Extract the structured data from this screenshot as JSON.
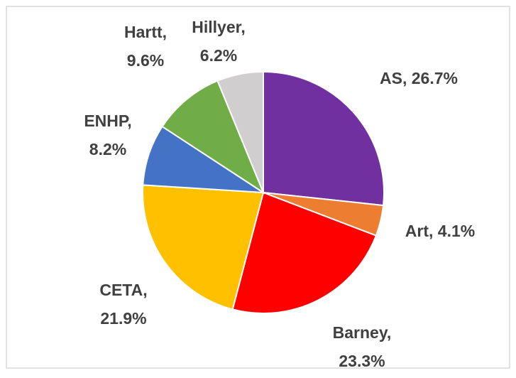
{
  "chart_data": {
    "type": "pie",
    "labels": [
      "AS, 26.7%",
      "Art, 4.1%",
      "Barney, 23.3%",
      "CETA, 21.9%",
      "ENHP, 8.2%",
      "Hartt, 9.6%",
      "Hillyer, 6.2%"
    ],
    "values": [
      26.7,
      4.1,
      23.3,
      21.9,
      8.2,
      9.6,
      6.2
    ],
    "colors": [
      "#7030a0",
      "#ed7d31",
      "#ff0000",
      "#ffc000",
      "#4472c4",
      "#70ad47",
      "#d0cece"
    ]
  }
}
